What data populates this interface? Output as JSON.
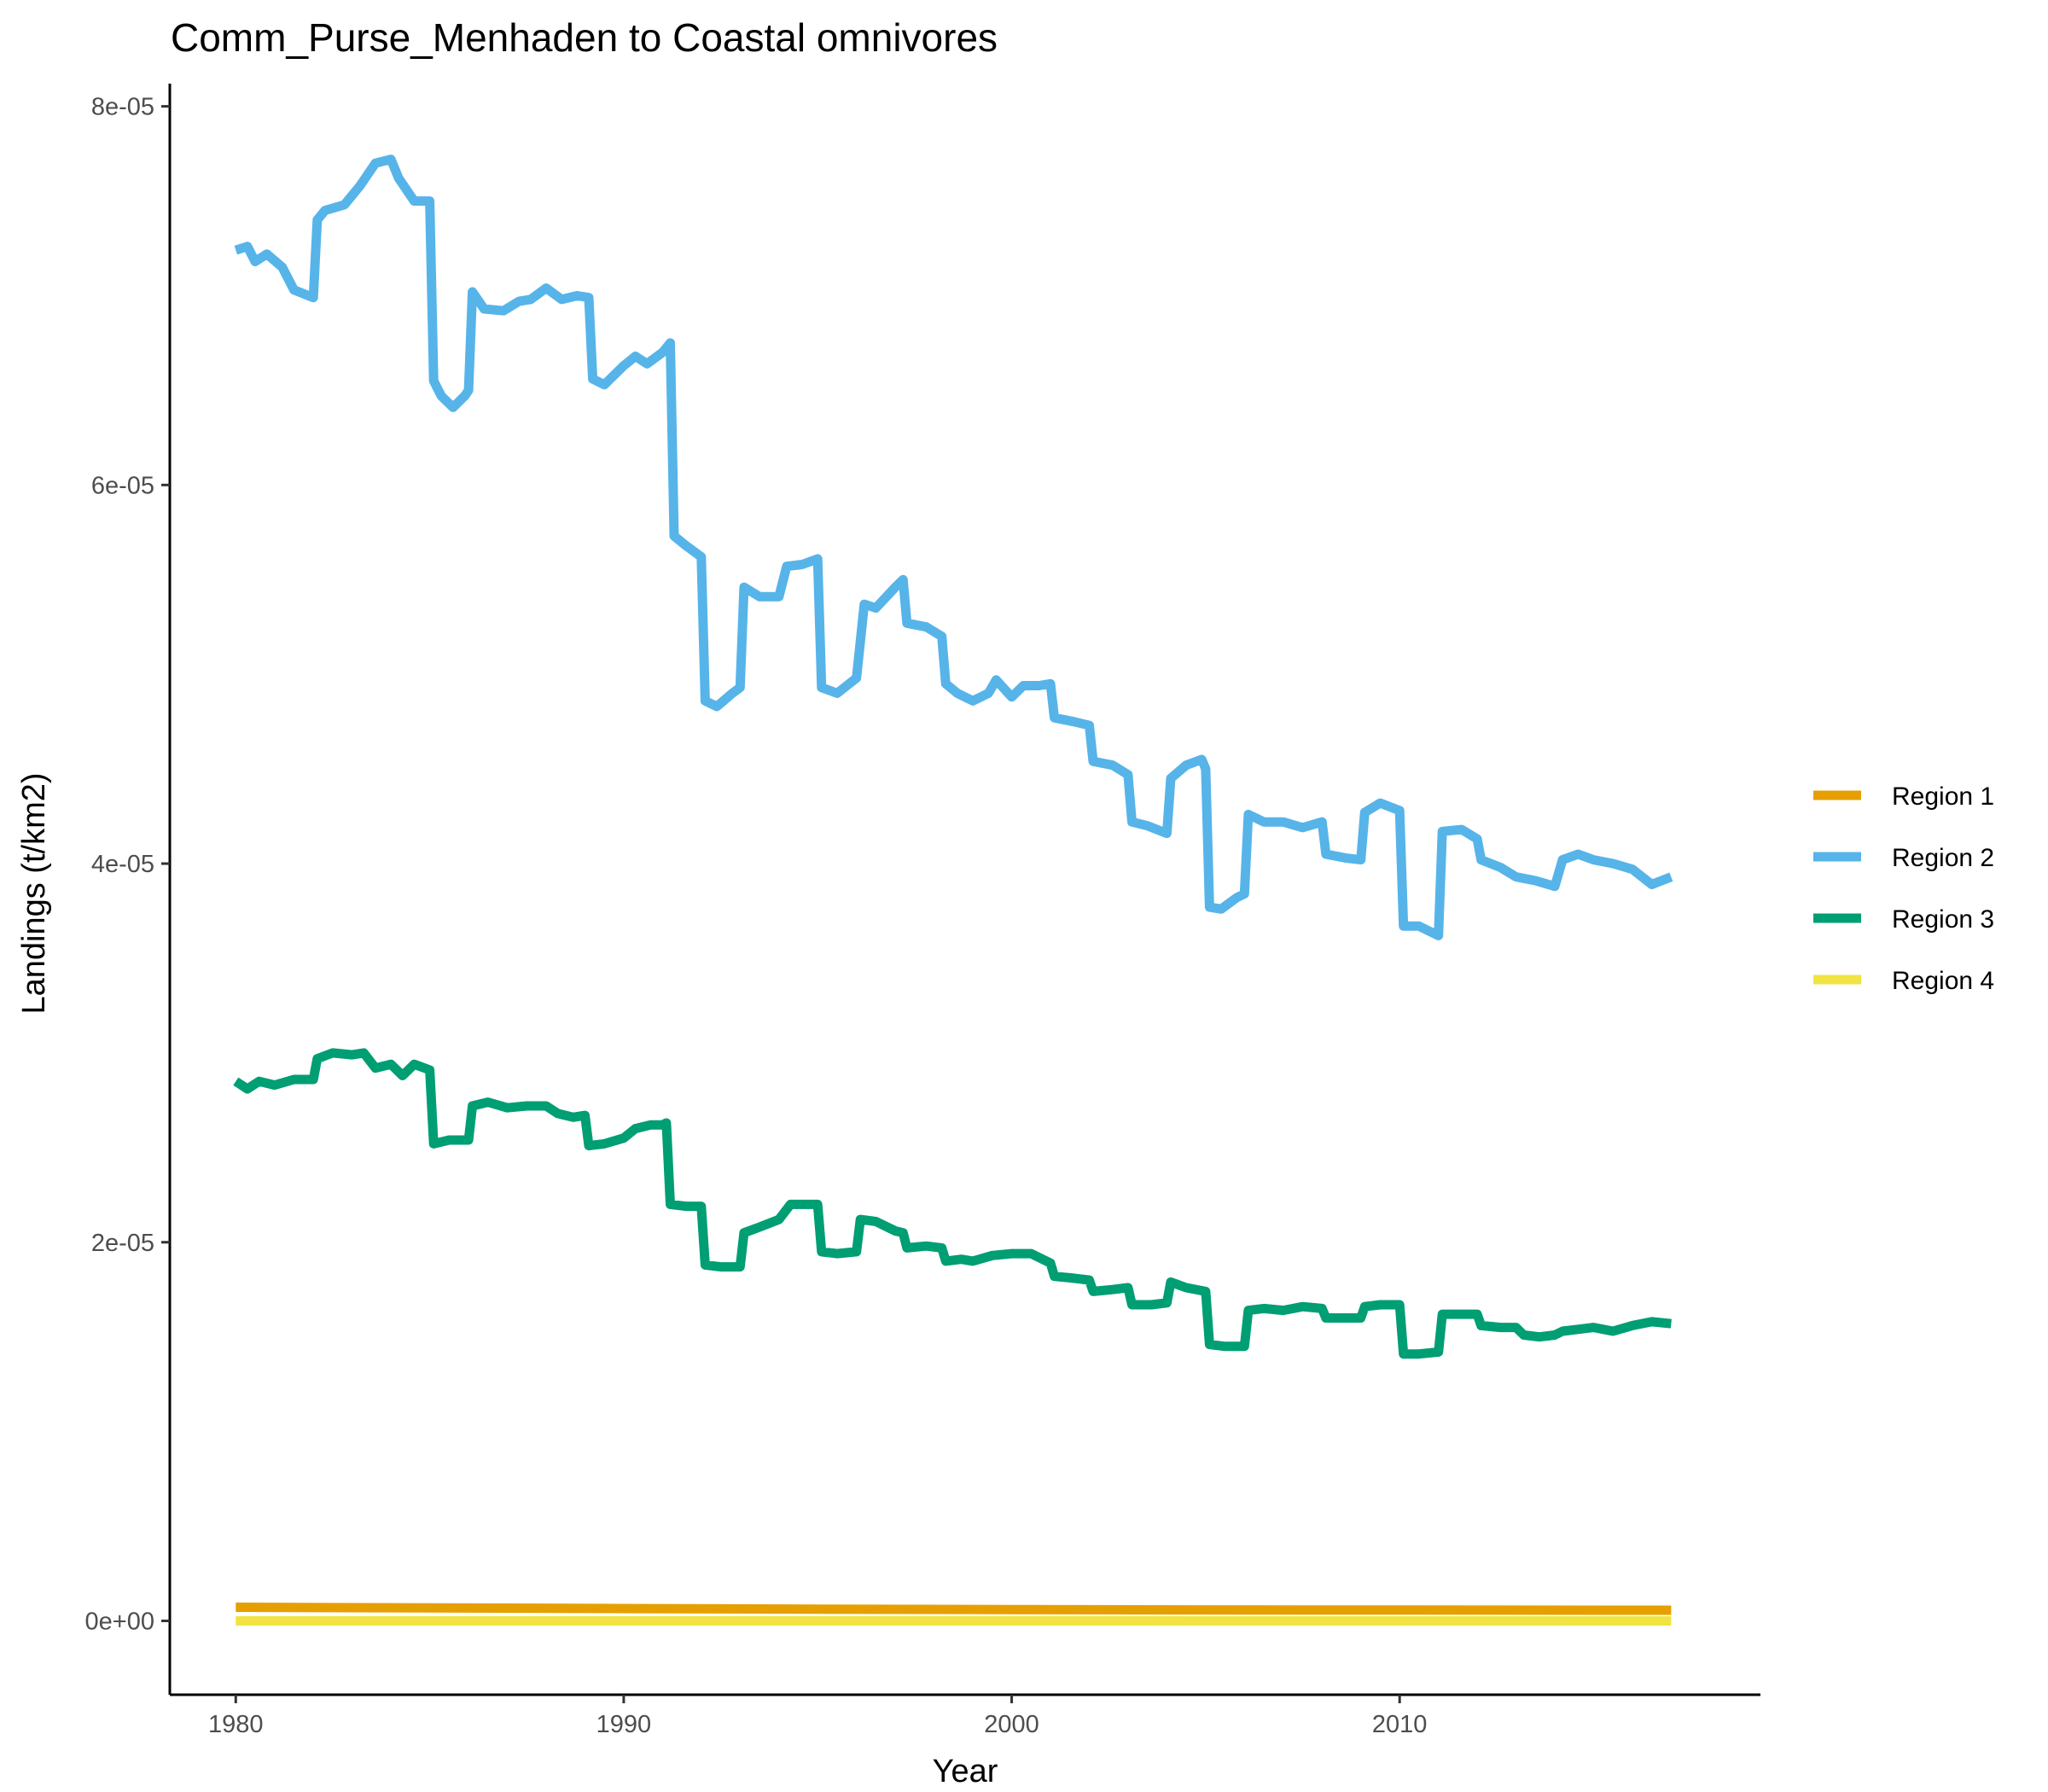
{
  "chart_data": {
    "type": "line",
    "title": "Comm_Purse_Menhaden to Coastal omnivores",
    "xlabel": "Year",
    "ylabel": "Landings (t/km2)",
    "xlim": [
      1978.3,
      2019.3
    ],
    "ylim": [
      -3.9e-06,
      8.12e-05
    ],
    "x_ticks": [
      1980,
      1990,
      2000,
      2010
    ],
    "x_tick_labels": [
      "1980",
      "1990",
      "2000",
      "2010"
    ],
    "y_ticks": [
      0,
      2e-05,
      4e-05,
      6e-05,
      8e-05
    ],
    "y_tick_labels": [
      "0e+00",
      "2e-05",
      "4e-05",
      "6e-05",
      "8e-05"
    ],
    "grid": false,
    "legend_position": "right",
    "series": [
      {
        "name": "Region 1",
        "color": "#E69F00",
        "points": [
          [
            1980.0,
            4.5e-07
          ],
          [
            1985.0,
            4.2e-07
          ],
          [
            1990.0,
            3.8e-07
          ],
          [
            1995.0,
            3.5e-07
          ],
          [
            2000.0,
            3.3e-07
          ],
          [
            2005.0,
            3.1e-07
          ],
          [
            2010.0,
            3e-07
          ],
          [
            2017.0,
            2.9e-07
          ]
        ]
      },
      {
        "name": "Region 2",
        "color": "#56B4E9",
        "points": [
          [
            1980.0,
            7.24e-05
          ],
          [
            1980.3,
            7.26e-05
          ],
          [
            1980.5,
            7.18e-05
          ],
          [
            1980.8,
            7.22e-05
          ],
          [
            1981.2,
            7.15e-05
          ],
          [
            1981.5,
            7.03e-05
          ],
          [
            1982.0,
            6.99e-05
          ],
          [
            1982.1,
            7.4e-05
          ],
          [
            1982.3,
            7.45e-05
          ],
          [
            1982.8,
            7.48e-05
          ],
          [
            1983.2,
            7.58e-05
          ],
          [
            1983.6,
            7.7e-05
          ],
          [
            1984.0,
            7.72e-05
          ],
          [
            1984.2,
            7.62e-05
          ],
          [
            1984.6,
            7.5e-05
          ],
          [
            1985.0,
            7.5e-05
          ],
          [
            1985.1,
            6.55e-05
          ],
          [
            1985.3,
            6.47e-05
          ],
          [
            1985.6,
            6.41e-05
          ],
          [
            1985.9,
            6.47e-05
          ],
          [
            1986.0,
            6.5e-05
          ],
          [
            1986.1,
            7.02e-05
          ],
          [
            1986.4,
            6.93e-05
          ],
          [
            1986.9,
            6.92e-05
          ],
          [
            1987.3,
            6.97e-05
          ],
          [
            1987.6,
            6.98e-05
          ],
          [
            1988.0,
            7.04e-05
          ],
          [
            1988.4,
            6.98e-05
          ],
          [
            1988.8,
            7e-05
          ],
          [
            1989.1,
            6.99e-05
          ],
          [
            1989.2,
            6.56e-05
          ],
          [
            1989.5,
            6.53e-05
          ],
          [
            1990.0,
            6.63e-05
          ],
          [
            1990.3,
            6.68e-05
          ],
          [
            1990.6,
            6.64e-05
          ],
          [
            1991.0,
            6.7e-05
          ],
          [
            1991.2,
            6.75e-05
          ],
          [
            1991.3,
            5.73e-05
          ],
          [
            1991.6,
            5.68e-05
          ],
          [
            1992.0,
            5.62e-05
          ],
          [
            1992.1,
            4.86e-05
          ],
          [
            1992.4,
            4.83e-05
          ],
          [
            1992.8,
            4.9e-05
          ],
          [
            1993.0,
            4.93e-05
          ],
          [
            1993.1,
            5.46e-05
          ],
          [
            1993.5,
            5.41e-05
          ],
          [
            1994.0,
            5.41e-05
          ],
          [
            1994.2,
            5.57e-05
          ],
          [
            1994.6,
            5.58e-05
          ],
          [
            1995.0,
            5.61e-05
          ],
          [
            1995.1,
            4.93e-05
          ],
          [
            1995.5,
            4.9e-05
          ],
          [
            1996.0,
            4.98e-05
          ],
          [
            1996.2,
            5.37e-05
          ],
          [
            1996.5,
            5.35e-05
          ],
          [
            1997.0,
            5.46e-05
          ],
          [
            1997.2,
            5.5e-05
          ],
          [
            1997.3,
            5.27e-05
          ],
          [
            1997.8,
            5.25e-05
          ],
          [
            1998.2,
            5.2e-05
          ],
          [
            1998.3,
            4.95e-05
          ],
          [
            1998.6,
            4.9e-05
          ],
          [
            1999.0,
            4.86e-05
          ],
          [
            1999.4,
            4.9e-05
          ],
          [
            1999.6,
            4.97e-05
          ],
          [
            2000.0,
            4.88e-05
          ],
          [
            2000.3,
            4.94e-05
          ],
          [
            2000.7,
            4.94e-05
          ],
          [
            2001.0,
            4.95e-05
          ],
          [
            2001.1,
            4.77e-05
          ],
          [
            2001.6,
            4.75e-05
          ],
          [
            2002.0,
            4.73e-05
          ],
          [
            2002.1,
            4.54e-05
          ],
          [
            2002.6,
            4.52e-05
          ],
          [
            2003.0,
            4.47e-05
          ],
          [
            2003.1,
            4.22e-05
          ],
          [
            2003.5,
            4.2e-05
          ],
          [
            2004.0,
            4.16e-05
          ],
          [
            2004.1,
            4.45e-05
          ],
          [
            2004.5,
            4.52e-05
          ],
          [
            2004.9,
            4.55e-05
          ],
          [
            2005.0,
            4.5e-05
          ],
          [
            2005.1,
            3.77e-05
          ],
          [
            2005.4,
            3.76e-05
          ],
          [
            2005.8,
            3.82e-05
          ],
          [
            2006.0,
            3.84e-05
          ],
          [
            2006.1,
            4.26e-05
          ],
          [
            2006.5,
            4.22e-05
          ],
          [
            2007.0,
            4.22e-05
          ],
          [
            2007.5,
            4.19e-05
          ],
          [
            2008.0,
            4.22e-05
          ],
          [
            2008.1,
            4.05e-05
          ],
          [
            2008.6,
            4.03e-05
          ],
          [
            2009.0,
            4.02e-05
          ],
          [
            2009.1,
            4.27e-05
          ],
          [
            2009.5,
            4.32e-05
          ],
          [
            2010.0,
            4.28e-05
          ],
          [
            2010.1,
            3.67e-05
          ],
          [
            2010.5,
            3.67e-05
          ],
          [
            2011.0,
            3.62e-05
          ],
          [
            2011.1,
            4.17e-05
          ],
          [
            2011.6,
            4.18e-05
          ],
          [
            2012.0,
            4.13e-05
          ],
          [
            2012.1,
            4.02e-05
          ],
          [
            2012.6,
            3.98e-05
          ],
          [
            2013.0,
            3.93e-05
          ],
          [
            2013.5,
            3.91e-05
          ],
          [
            2014.0,
            3.88e-05
          ],
          [
            2014.2,
            4.02e-05
          ],
          [
            2014.6,
            4.05e-05
          ],
          [
            2015.0,
            4.02e-05
          ],
          [
            2015.5,
            4e-05
          ],
          [
            2016.0,
            3.97e-05
          ],
          [
            2016.5,
            3.89e-05
          ],
          [
            2017.0,
            3.93e-05
          ]
        ]
      },
      {
        "name": "Region 3",
        "color": "#009E73",
        "points": [
          [
            1980.0,
            2.85e-05
          ],
          [
            1980.3,
            2.81e-05
          ],
          [
            1980.6,
            2.85e-05
          ],
          [
            1981.0,
            2.83e-05
          ],
          [
            1981.5,
            2.86e-05
          ],
          [
            1982.0,
            2.86e-05
          ],
          [
            1982.1,
            2.97e-05
          ],
          [
            1982.5,
            3e-05
          ],
          [
            1983.0,
            2.99e-05
          ],
          [
            1983.3,
            3e-05
          ],
          [
            1983.6,
            2.92e-05
          ],
          [
            1984.0,
            2.94e-05
          ],
          [
            1984.3,
            2.88e-05
          ],
          [
            1984.6,
            2.94e-05
          ],
          [
            1985.0,
            2.91e-05
          ],
          [
            1985.1,
            2.52e-05
          ],
          [
            1985.5,
            2.54e-05
          ],
          [
            1986.0,
            2.54e-05
          ],
          [
            1986.1,
            2.72e-05
          ],
          [
            1986.5,
            2.74e-05
          ],
          [
            1987.0,
            2.71e-05
          ],
          [
            1987.5,
            2.72e-05
          ],
          [
            1988.0,
            2.72e-05
          ],
          [
            1988.3,
            2.68e-05
          ],
          [
            1988.7,
            2.66e-05
          ],
          [
            1989.0,
            2.67e-05
          ],
          [
            1989.1,
            2.51e-05
          ],
          [
            1989.5,
            2.52e-05
          ],
          [
            1990.0,
            2.55e-05
          ],
          [
            1990.3,
            2.6e-05
          ],
          [
            1990.7,
            2.62e-05
          ],
          [
            1991.0,
            2.62e-05
          ],
          [
            1991.1,
            2.63e-05
          ],
          [
            1991.2,
            2.2e-05
          ],
          [
            1991.6,
            2.19e-05
          ],
          [
            1992.0,
            2.19e-05
          ],
          [
            1992.1,
            1.88e-05
          ],
          [
            1992.5,
            1.87e-05
          ],
          [
            1993.0,
            1.87e-05
          ],
          [
            1993.1,
            2.05e-05
          ],
          [
            1993.5,
            2.08e-05
          ],
          [
            1994.0,
            2.12e-05
          ],
          [
            1994.3,
            2.2e-05
          ],
          [
            1994.7,
            2.2e-05
          ],
          [
            1995.0,
            2.2e-05
          ],
          [
            1995.1,
            1.95e-05
          ],
          [
            1995.5,
            1.94e-05
          ],
          [
            1996.0,
            1.95e-05
          ],
          [
            1996.1,
            2.12e-05
          ],
          [
            1996.5,
            2.11e-05
          ],
          [
            1997.0,
            2.06e-05
          ],
          [
            1997.2,
            2.05e-05
          ],
          [
            1997.3,
            1.97e-05
          ],
          [
            1997.8,
            1.98e-05
          ],
          [
            1998.2,
            1.97e-05
          ],
          [
            1998.3,
            1.9e-05
          ],
          [
            1998.7,
            1.91e-05
          ],
          [
            1999.0,
            1.9e-05
          ],
          [
            1999.5,
            1.93e-05
          ],
          [
            2000.0,
            1.94e-05
          ],
          [
            2000.5,
            1.94e-05
          ],
          [
            2001.0,
            1.89e-05
          ],
          [
            2001.1,
            1.82e-05
          ],
          [
            2001.6,
            1.81e-05
          ],
          [
            2002.0,
            1.8e-05
          ],
          [
            2002.1,
            1.74e-05
          ],
          [
            2002.6,
            1.75e-05
          ],
          [
            2003.0,
            1.76e-05
          ],
          [
            2003.1,
            1.67e-05
          ],
          [
            2003.6,
            1.67e-05
          ],
          [
            2004.0,
            1.68e-05
          ],
          [
            2004.1,
            1.79e-05
          ],
          [
            2004.5,
            1.76e-05
          ],
          [
            2005.0,
            1.74e-05
          ],
          [
            2005.1,
            1.46e-05
          ],
          [
            2005.5,
            1.45e-05
          ],
          [
            2006.0,
            1.45e-05
          ],
          [
            2006.1,
            1.64e-05
          ],
          [
            2006.5,
            1.65e-05
          ],
          [
            2007.0,
            1.64e-05
          ],
          [
            2007.5,
            1.66e-05
          ],
          [
            2008.0,
            1.65e-05
          ],
          [
            2008.1,
            1.6e-05
          ],
          [
            2008.6,
            1.6e-05
          ],
          [
            2009.0,
            1.6e-05
          ],
          [
            2009.1,
            1.66e-05
          ],
          [
            2009.5,
            1.67e-05
          ],
          [
            2010.0,
            1.67e-05
          ],
          [
            2010.1,
            1.41e-05
          ],
          [
            2010.5,
            1.41e-05
          ],
          [
            2011.0,
            1.42e-05
          ],
          [
            2011.1,
            1.62e-05
          ],
          [
            2011.6,
            1.62e-05
          ],
          [
            2012.0,
            1.62e-05
          ],
          [
            2012.1,
            1.56e-05
          ],
          [
            2012.6,
            1.55e-05
          ],
          [
            2013.0,
            1.55e-05
          ],
          [
            2013.2,
            1.51e-05
          ],
          [
            2013.6,
            1.5e-05
          ],
          [
            2014.0,
            1.51e-05
          ],
          [
            2014.2,
            1.53e-05
          ],
          [
            2014.6,
            1.54e-05
          ],
          [
            2015.0,
            1.55e-05
          ],
          [
            2015.5,
            1.53e-05
          ],
          [
            2016.0,
            1.56e-05
          ],
          [
            2016.5,
            1.58e-05
          ],
          [
            2017.0,
            1.57e-05
          ]
        ]
      },
      {
        "name": "Region 4",
        "color": "#F0E442",
        "points": [
          [
            1980.0,
            0.0
          ],
          [
            1985.0,
            0.0
          ],
          [
            1990.0,
            0.0
          ],
          [
            1995.0,
            0.0
          ],
          [
            2000.0,
            0.0
          ],
          [
            2005.0,
            0.0
          ],
          [
            2010.0,
            0.0
          ],
          [
            2017.0,
            0.0
          ]
        ]
      }
    ]
  }
}
